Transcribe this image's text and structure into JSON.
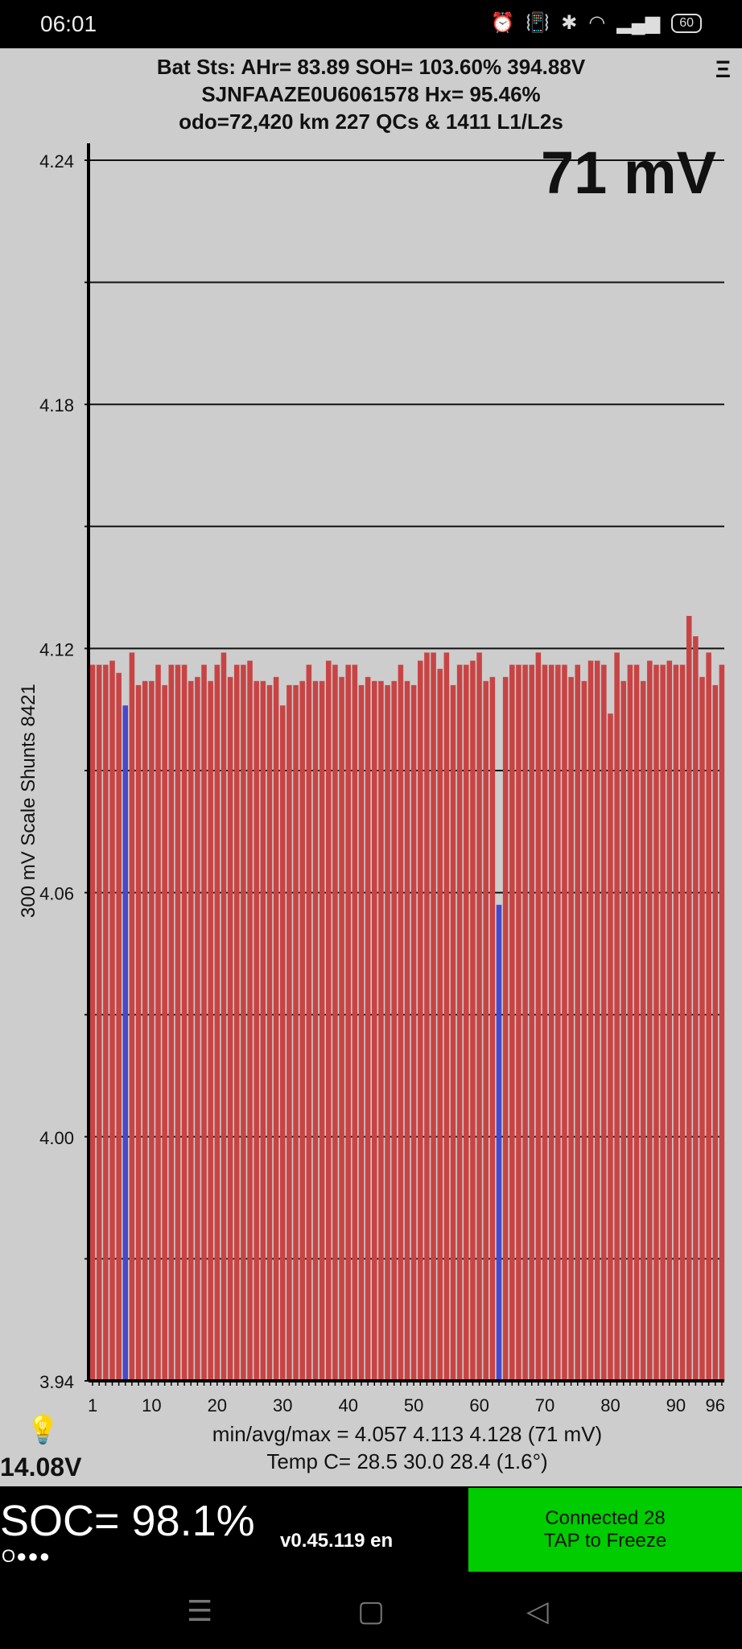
{
  "status_bar": {
    "time": "06:01",
    "battery": "60",
    "icons": [
      "alarm-icon",
      "vibrate-icon",
      "bluetooth-icon",
      "wifi-icon",
      "signal-icon"
    ]
  },
  "header": {
    "line1": "Bat Sts:  AHr= 83.89  SOH= 103.60%   394.88V",
    "line2": "SJNFAAZE0U6061578   Hx= 95.46%",
    "line3": "odo=72,420 km 227 QCs & 1411 L1/L2s",
    "menu": "Ξ"
  },
  "delta_label": "71 mV",
  "axis_label": "300 mV Scale   Shunts 8421",
  "chart_data": {
    "type": "bar",
    "ylim": [
      3.94,
      4.24
    ],
    "grid": true,
    "ytick_labels": [
      "4.24",
      "4.18",
      "4.12",
      "4.06",
      "4.00",
      "3.94"
    ],
    "xtick_labels": [
      "1",
      "10",
      "20",
      "30",
      "40",
      "50",
      "60",
      "70",
      "80",
      "90",
      "96"
    ],
    "highlight_cells": [
      6,
      63
    ],
    "colors": {
      "normal": "#c84444",
      "highlight": "#4848cc"
    },
    "values": [
      4.116,
      4.116,
      4.116,
      4.117,
      4.114,
      4.106,
      4.119,
      4.111,
      4.112,
      4.112,
      4.116,
      4.111,
      4.116,
      4.116,
      4.116,
      4.112,
      4.113,
      4.116,
      4.112,
      4.116,
      4.119,
      4.113,
      4.116,
      4.116,
      4.117,
      4.112,
      4.112,
      4.111,
      4.113,
      4.106,
      4.111,
      4.111,
      4.112,
      4.116,
      4.112,
      4.112,
      4.117,
      4.116,
      4.113,
      4.116,
      4.116,
      4.111,
      4.113,
      4.112,
      4.112,
      4.111,
      4.112,
      4.116,
      4.112,
      4.111,
      4.117,
      4.119,
      4.119,
      4.115,
      4.119,
      4.111,
      4.116,
      4.116,
      4.117,
      4.119,
      4.112,
      4.113,
      4.057,
      4.113,
      4.116,
      4.116,
      4.116,
      4.116,
      4.119,
      4.116,
      4.116,
      4.116,
      4.116,
      4.113,
      4.116,
      4.112,
      4.117,
      4.117,
      4.116,
      4.104,
      4.119,
      4.112,
      4.116,
      4.116,
      4.112,
      4.117,
      4.116,
      4.116,
      4.117,
      4.116,
      4.116,
      4.128,
      4.123,
      4.113,
      4.119,
      4.111,
      4.116
    ]
  },
  "footer": {
    "stats": "min/avg/max = 4.057 4.113 4.128  (71 mV)",
    "temp": "Temp C= 28.5  30.0  28.4  (1.6°)",
    "aux_voltage": "14.08V"
  },
  "bottom": {
    "soc": "SOC= 98.1%",
    "dots": "O●●●",
    "version": "v0.45.119 en",
    "connect_line1": "Connected 28",
    "connect_line2": "TAP to Freeze"
  },
  "nav": {
    "menu": "☰",
    "home": "▢",
    "back": "◁"
  }
}
